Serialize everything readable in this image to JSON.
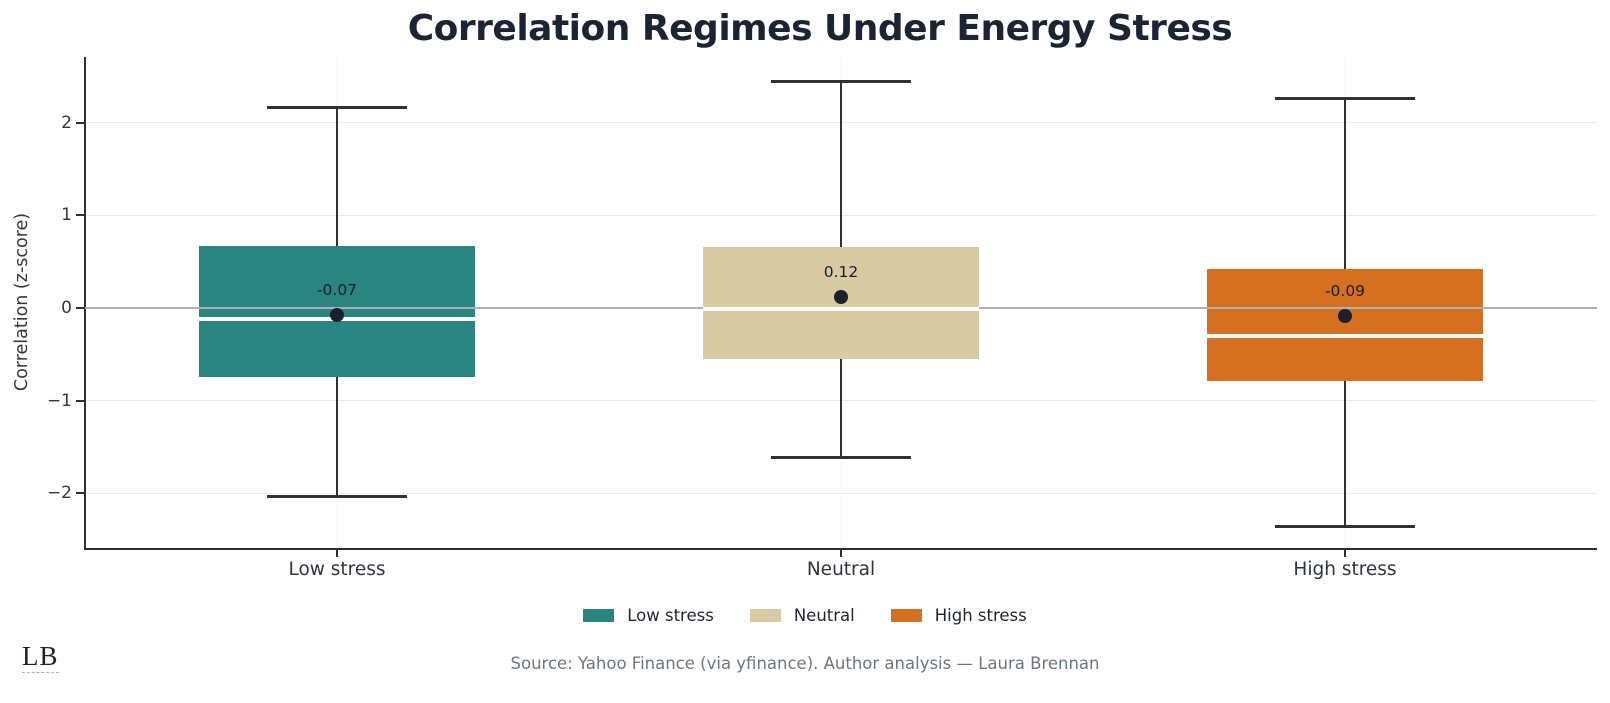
{
  "chart_data": {
    "type": "box",
    "title": "Correlation Regimes Under Energy Stress",
    "ylabel": "Correlation (z-score)",
    "xlabel": "",
    "categories": [
      "Low stress",
      "Neutral",
      "High stress"
    ],
    "ylim": [
      -2.59,
      2.71
    ],
    "grid": "horizontal-light",
    "zero_line": true,
    "legend_position": "bottom-center",
    "yticks": [
      {
        "value": -2,
        "label": "−2"
      },
      {
        "value": -1,
        "label": "−1"
      },
      {
        "value": 0,
        "label": "0"
      },
      {
        "value": 1,
        "label": "1"
      },
      {
        "value": 2,
        "label": "2"
      }
    ],
    "series": [
      {
        "name": "Low stress",
        "color": "#2a8580",
        "whisker_low": -2.03,
        "q1": -0.74,
        "median": -0.12,
        "q3": 0.67,
        "whisker_high": 2.16,
        "mean": -0.07,
        "mean_label": "-0.07"
      },
      {
        "name": "Neutral",
        "color": "#d8caa2",
        "whisker_low": -1.61,
        "q1": -0.55,
        "median": -0.01,
        "q3": 0.66,
        "whisker_high": 2.45,
        "mean": 0.12,
        "mean_label": "0.12"
      },
      {
        "name": "High stress",
        "color": "#d4701f",
        "whisker_low": -2.36,
        "q1": -0.79,
        "median": -0.3,
        "q3": 0.42,
        "whisker_high": 2.26,
        "mean": -0.09,
        "mean_label": "-0.09"
      }
    ],
    "legend": [
      {
        "label": "Low stress",
        "color": "#2a8580"
      },
      {
        "label": "Neutral",
        "color": "#d8caa2"
      },
      {
        "label": "High stress",
        "color": "#d4701f"
      }
    ]
  },
  "colors": {
    "title_text": "#1b2433",
    "axis_text": "#33383f",
    "spine": "#2d2f33",
    "whisker": "#2f3133",
    "gridline": "#ebebeb",
    "vertical_gridline": "#f2f2f2",
    "zero_line": "#b0b0b0",
    "median_line": "#ffffff",
    "mean_dot": "#1a202c",
    "source_text": "#6d7680"
  },
  "footer": {
    "logo_text": "LB",
    "source": "Source: Yahoo Finance (via yfinance). Author analysis — Laura Brennan"
  }
}
